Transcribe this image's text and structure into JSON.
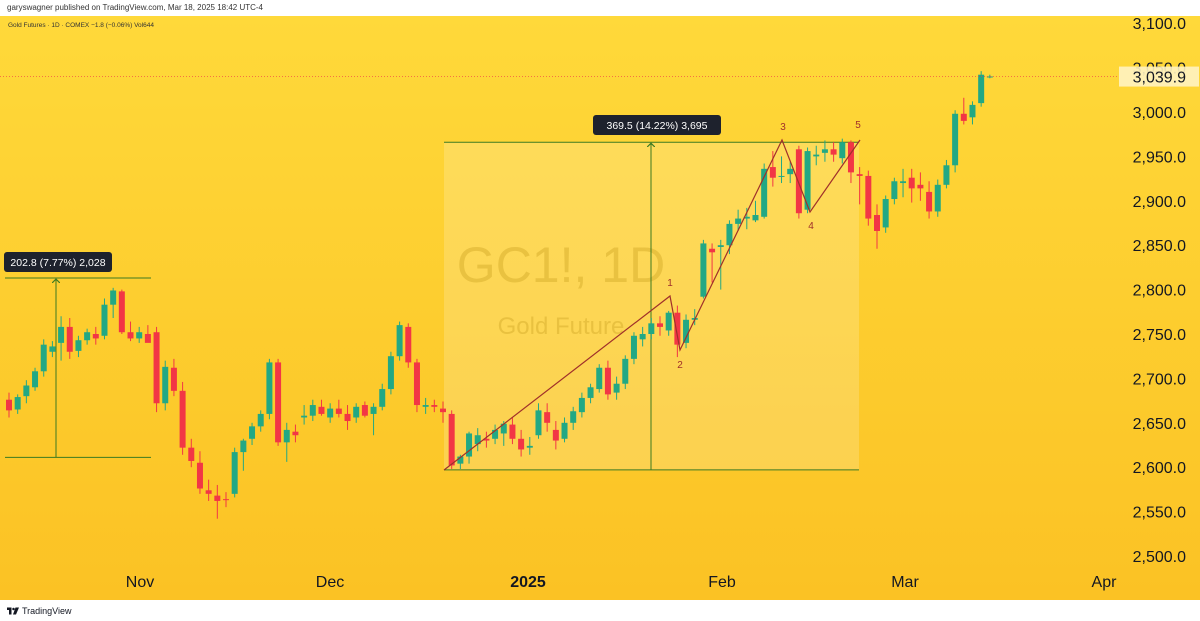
{
  "published_line": "garyswagner published on TradingView.com, Mar 18, 2025 18:42 UTC-4",
  "branding": {
    "logo_text": "TradingView"
  },
  "colors": {
    "background_top": "#ffd93a",
    "background_bottom": "#fbc224",
    "up": "#22a884",
    "down": "#f23645",
    "measure": "#3d7a21",
    "wave": "#a0302a",
    "price_label_bg": "#f23645"
  },
  "chart_data": {
    "type": "candlestick",
    "symbol_header": "Gold Futures · 1D · COMEX  −1.8 (−0.06%)  Vol644",
    "watermark": {
      "symbol": "GC1!, 1D",
      "name": "Gold Future"
    },
    "yaxis": {
      "ticks": [
        "3,100.0",
        "3,050.0",
        "3,000.0",
        "2,950.0",
        "2,900.0",
        "2,850.0",
        "2,800.0",
        "2,750.0",
        "2,700.0",
        "2,650.0",
        "2,600.0",
        "2,550.0",
        "2,500.0"
      ],
      "ylim": [
        2490,
        3112
      ]
    },
    "xaxis": {
      "ticks": [
        "Nov",
        "Dec",
        "2025",
        "Feb",
        "Mar",
        "Apr"
      ]
    },
    "last_price": "3,039.9",
    "grid": false,
    "candles": [
      {
        "o": 2676,
        "h": 2684,
        "l": 2656,
        "c": 2664
      },
      {
        "o": 2665,
        "h": 2682,
        "l": 2660,
        "c": 2679
      },
      {
        "o": 2680,
        "h": 2698,
        "l": 2672,
        "c": 2692
      },
      {
        "o": 2690,
        "h": 2712,
        "l": 2686,
        "c": 2708
      },
      {
        "o": 2708,
        "h": 2744,
        "l": 2702,
        "c": 2738
      },
      {
        "o": 2730,
        "h": 2742,
        "l": 2724,
        "c": 2736
      },
      {
        "o": 2740,
        "h": 2770,
        "l": 2720,
        "c": 2758
      },
      {
        "o": 2758,
        "h": 2768,
        "l": 2722,
        "c": 2730
      },
      {
        "o": 2731,
        "h": 2748,
        "l": 2724,
        "c": 2743
      },
      {
        "o": 2743,
        "h": 2756,
        "l": 2738,
        "c": 2752
      },
      {
        "o": 2750,
        "h": 2758,
        "l": 2738,
        "c": 2745
      },
      {
        "o": 2748,
        "h": 2790,
        "l": 2744,
        "c": 2783
      },
      {
        "o": 2783,
        "h": 2802,
        "l": 2768,
        "c": 2799
      },
      {
        "o": 2798,
        "h": 2800,
        "l": 2750,
        "c": 2752
      },
      {
        "o": 2752,
        "h": 2764,
        "l": 2742,
        "c": 2745
      },
      {
        "o": 2745,
        "h": 2758,
        "l": 2740,
        "c": 2752
      },
      {
        "o": 2750,
        "h": 2760,
        "l": 2744,
        "c": 2740
      },
      {
        "o": 2752,
        "h": 2758,
        "l": 2662,
        "c": 2672
      },
      {
        "o": 2672,
        "h": 2720,
        "l": 2664,
        "c": 2713
      },
      {
        "o": 2712,
        "h": 2722,
        "l": 2680,
        "c": 2686
      },
      {
        "o": 2686,
        "h": 2696,
        "l": 2614,
        "c": 2622
      },
      {
        "o": 2622,
        "h": 2632,
        "l": 2600,
        "c": 2607
      },
      {
        "o": 2605,
        "h": 2618,
        "l": 2570,
        "c": 2576
      },
      {
        "o": 2574,
        "h": 2586,
        "l": 2562,
        "c": 2570
      },
      {
        "o": 2568,
        "h": 2580,
        "l": 2542,
        "c": 2562
      },
      {
        "o": 2564,
        "h": 2572,
        "l": 2555,
        "c": 2563
      },
      {
        "o": 2570,
        "h": 2622,
        "l": 2566,
        "c": 2617
      },
      {
        "o": 2617,
        "h": 2632,
        "l": 2596,
        "c": 2630
      },
      {
        "o": 2632,
        "h": 2650,
        "l": 2625,
        "c": 2646
      },
      {
        "o": 2646,
        "h": 2664,
        "l": 2640,
        "c": 2660
      },
      {
        "o": 2660,
        "h": 2722,
        "l": 2654,
        "c": 2718
      },
      {
        "o": 2718,
        "h": 2722,
        "l": 2624,
        "c": 2628
      },
      {
        "o": 2628,
        "h": 2650,
        "l": 2606,
        "c": 2642
      },
      {
        "o": 2640,
        "h": 2648,
        "l": 2628,
        "c": 2636
      },
      {
        "o": 2656,
        "h": 2670,
        "l": 2648,
        "c": 2658
      },
      {
        "o": 2658,
        "h": 2676,
        "l": 2652,
        "c": 2670
      },
      {
        "o": 2668,
        "h": 2676,
        "l": 2658,
        "c": 2660
      },
      {
        "o": 2656,
        "h": 2672,
        "l": 2650,
        "c": 2666
      },
      {
        "o": 2666,
        "h": 2676,
        "l": 2656,
        "c": 2660
      },
      {
        "o": 2660,
        "h": 2670,
        "l": 2642,
        "c": 2652
      },
      {
        "o": 2656,
        "h": 2672,
        "l": 2650,
        "c": 2668
      },
      {
        "o": 2670,
        "h": 2674,
        "l": 2656,
        "c": 2658
      },
      {
        "o": 2660,
        "h": 2672,
        "l": 2636,
        "c": 2668
      },
      {
        "o": 2668,
        "h": 2694,
        "l": 2664,
        "c": 2688
      },
      {
        "o": 2688,
        "h": 2730,
        "l": 2682,
        "c": 2725
      },
      {
        "o": 2725,
        "h": 2764,
        "l": 2720,
        "c": 2760
      },
      {
        "o": 2758,
        "h": 2762,
        "l": 2712,
        "c": 2718
      },
      {
        "o": 2718,
        "h": 2722,
        "l": 2662,
        "c": 2670
      },
      {
        "o": 2668,
        "h": 2678,
        "l": 2660,
        "c": 2670
      },
      {
        "o": 2670,
        "h": 2676,
        "l": 2662,
        "c": 2668
      },
      {
        "o": 2666,
        "h": 2674,
        "l": 2650,
        "c": 2662
      },
      {
        "o": 2660,
        "h": 2664,
        "l": 2598,
        "c": 2602
      },
      {
        "o": 2604,
        "h": 2614,
        "l": 2598,
        "c": 2612
      },
      {
        "o": 2612,
        "h": 2640,
        "l": 2604,
        "c": 2638
      },
      {
        "o": 2626,
        "h": 2644,
        "l": 2618,
        "c": 2636
      },
      {
        "o": 2632,
        "h": 2640,
        "l": 2622,
        "c": 2630
      },
      {
        "o": 2632,
        "h": 2648,
        "l": 2626,
        "c": 2642
      },
      {
        "o": 2638,
        "h": 2652,
        "l": 2624,
        "c": 2649
      },
      {
        "o": 2648,
        "h": 2656,
        "l": 2626,
        "c": 2632
      },
      {
        "o": 2632,
        "h": 2642,
        "l": 2612,
        "c": 2620
      },
      {
        "o": 2622,
        "h": 2634,
        "l": 2614,
        "c": 2624
      },
      {
        "o": 2636,
        "h": 2672,
        "l": 2632,
        "c": 2664
      },
      {
        "o": 2662,
        "h": 2672,
        "l": 2640,
        "c": 2650
      },
      {
        "o": 2642,
        "h": 2652,
        "l": 2620,
        "c": 2630
      },
      {
        "o": 2632,
        "h": 2656,
        "l": 2628,
        "c": 2650
      },
      {
        "o": 2650,
        "h": 2668,
        "l": 2642,
        "c": 2663
      },
      {
        "o": 2662,
        "h": 2684,
        "l": 2656,
        "c": 2678
      },
      {
        "o": 2678,
        "h": 2694,
        "l": 2672,
        "c": 2690
      },
      {
        "o": 2688,
        "h": 2716,
        "l": 2684,
        "c": 2712
      },
      {
        "o": 2712,
        "h": 2720,
        "l": 2676,
        "c": 2682
      },
      {
        "o": 2684,
        "h": 2702,
        "l": 2676,
        "c": 2694
      },
      {
        "o": 2694,
        "h": 2726,
        "l": 2688,
        "c": 2722
      },
      {
        "o": 2722,
        "h": 2752,
        "l": 2716,
        "c": 2748
      },
      {
        "o": 2744,
        "h": 2758,
        "l": 2736,
        "c": 2750
      },
      {
        "o": 2750,
        "h": 2768,
        "l": 2744,
        "c": 2762
      },
      {
        "o": 2762,
        "h": 2770,
        "l": 2748,
        "c": 2758
      },
      {
        "o": 2754,
        "h": 2776,
        "l": 2748,
        "c": 2774
      },
      {
        "o": 2774,
        "h": 2782,
        "l": 2724,
        "c": 2738
      },
      {
        "o": 2740,
        "h": 2772,
        "l": 2734,
        "c": 2766
      },
      {
        "o": 2766,
        "h": 2778,
        "l": 2760,
        "c": 2768
      },
      {
        "o": 2792,
        "h": 2856,
        "l": 2790,
        "c": 2852
      },
      {
        "o": 2846,
        "h": 2852,
        "l": 2808,
        "c": 2842
      },
      {
        "o": 2848,
        "h": 2856,
        "l": 2800,
        "c": 2850
      },
      {
        "o": 2850,
        "h": 2878,
        "l": 2840,
        "c": 2874
      },
      {
        "o": 2874,
        "h": 2890,
        "l": 2866,
        "c": 2880
      },
      {
        "o": 2880,
        "h": 2892,
        "l": 2868,
        "c": 2882
      },
      {
        "o": 2878,
        "h": 2900,
        "l": 2876,
        "c": 2884
      },
      {
        "o": 2882,
        "h": 2942,
        "l": 2880,
        "c": 2936
      },
      {
        "o": 2938,
        "h": 2956,
        "l": 2916,
        "c": 2926
      },
      {
        "o": 2928,
        "h": 2950,
        "l": 2920,
        "c": 2928
      },
      {
        "o": 2930,
        "h": 2944,
        "l": 2920,
        "c": 2936
      },
      {
        "o": 2958,
        "h": 2962,
        "l": 2880,
        "c": 2886
      },
      {
        "o": 2890,
        "h": 2960,
        "l": 2886,
        "c": 2956
      },
      {
        "o": 2950,
        "h": 2962,
        "l": 2940,
        "c": 2952
      },
      {
        "o": 2954,
        "h": 2968,
        "l": 2944,
        "c": 2958
      },
      {
        "o": 2958,
        "h": 2966,
        "l": 2944,
        "c": 2952
      },
      {
        "o": 2948,
        "h": 2970,
        "l": 2942,
        "c": 2966
      },
      {
        "o": 2966,
        "h": 2968,
        "l": 2920,
        "c": 2932
      },
      {
        "o": 2930,
        "h": 2938,
        "l": 2896,
        "c": 2928
      },
      {
        "o": 2928,
        "h": 2934,
        "l": 2872,
        "c": 2880
      },
      {
        "o": 2884,
        "h": 2896,
        "l": 2846,
        "c": 2866
      },
      {
        "o": 2870,
        "h": 2906,
        "l": 2864,
        "c": 2902
      },
      {
        "o": 2902,
        "h": 2926,
        "l": 2896,
        "c": 2922
      },
      {
        "o": 2920,
        "h": 2936,
        "l": 2904,
        "c": 2922
      },
      {
        "o": 2926,
        "h": 2936,
        "l": 2898,
        "c": 2914
      },
      {
        "o": 2918,
        "h": 2932,
        "l": 2900,
        "c": 2914
      },
      {
        "o": 2910,
        "h": 2922,
        "l": 2880,
        "c": 2888
      },
      {
        "o": 2888,
        "h": 2924,
        "l": 2882,
        "c": 2918
      },
      {
        "o": 2918,
        "h": 2946,
        "l": 2914,
        "c": 2940
      },
      {
        "o": 2940,
        "h": 3002,
        "l": 2932,
        "c": 2998
      },
      {
        "o": 2998,
        "h": 3016,
        "l": 2986,
        "c": 2990
      },
      {
        "o": 2994,
        "h": 3012,
        "l": 2986,
        "c": 3008
      },
      {
        "o": 3010,
        "h": 3046,
        "l": 3006,
        "c": 3042
      },
      {
        "o": 3040,
        "h": 3042,
        "l": 3038,
        "c": 3040
      }
    ],
    "annotations": {
      "measure_left": {
        "label": "202.8 (7.77%) 2,028",
        "low": 2611,
        "high": 2813
      },
      "measure_right": {
        "label": "369.5 (14.22%) 3,695",
        "low": 2597,
        "high": 2966
      },
      "wave_labels": [
        "1",
        "2",
        "3",
        "4",
        "5"
      ]
    }
  }
}
